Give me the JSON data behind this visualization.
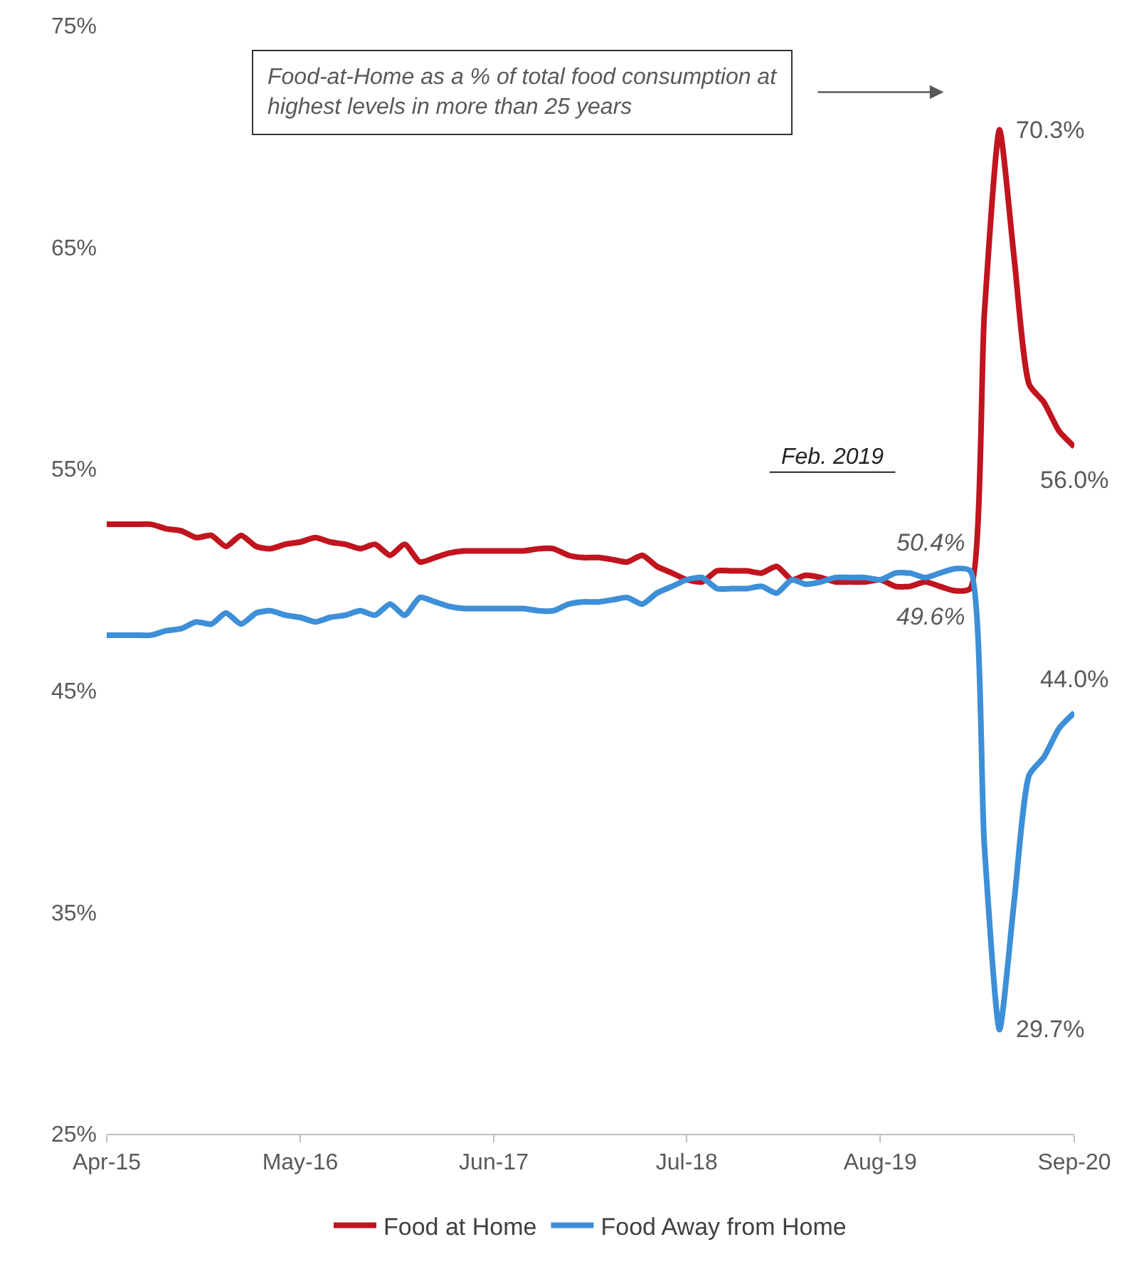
{
  "chart_data": {
    "type": "line",
    "x": [
      "2015-04",
      "2015-05",
      "2015-06",
      "2015-07",
      "2015-08",
      "2015-09",
      "2015-10",
      "2015-11",
      "2015-12",
      "2016-01",
      "2016-02",
      "2016-03",
      "2016-04",
      "2016-05",
      "2016-06",
      "2016-07",
      "2016-08",
      "2016-09",
      "2016-10",
      "2016-11",
      "2016-12",
      "2017-01",
      "2017-02",
      "2017-03",
      "2017-04",
      "2017-05",
      "2017-06",
      "2017-07",
      "2017-08",
      "2017-09",
      "2017-10",
      "2017-11",
      "2017-12",
      "2018-01",
      "2018-02",
      "2018-03",
      "2018-04",
      "2018-05",
      "2018-06",
      "2018-07",
      "2018-08",
      "2018-09",
      "2018-10",
      "2018-11",
      "2018-12",
      "2019-01",
      "2019-02",
      "2019-03",
      "2019-04",
      "2019-05",
      "2019-06",
      "2019-07",
      "2019-08",
      "2019-09",
      "2019-10",
      "2019-11",
      "2019-12",
      "2020-01",
      "2020-02",
      "2020-03",
      "2020-04",
      "2020-05",
      "2020-06",
      "2020-07",
      "2020-08",
      "2020-09"
    ],
    "series": [
      {
        "name": "Food at Home",
        "color": "#c0141e",
        "values": [
          52.5,
          52.5,
          52.5,
          52.5,
          52.3,
          52.2,
          51.9,
          52.0,
          51.5,
          52.0,
          51.5,
          51.4,
          51.6,
          51.7,
          51.9,
          51.7,
          51.6,
          51.4,
          51.6,
          51.1,
          51.6,
          50.8,
          51.0,
          51.2,
          51.3,
          51.3,
          51.3,
          51.3,
          51.3,
          51.4,
          51.4,
          51.1,
          51.0,
          51.0,
          50.9,
          50.8,
          51.1,
          50.6,
          50.3,
          50.0,
          49.9,
          50.4,
          50.4,
          50.4,
          50.3,
          50.6,
          50.0,
          50.2,
          50.1,
          49.9,
          49.9,
          49.9,
          50.0,
          49.7,
          49.7,
          49.9,
          49.7,
          49.5,
          49.6,
          62.0,
          70.3,
          64.5,
          58.8,
          58.0,
          56.7,
          56.0
        ],
        "value_labels": [
          null,
          null,
          null,
          null,
          null,
          null,
          null,
          null,
          null,
          null,
          null,
          null,
          null,
          null,
          null,
          null,
          null,
          null,
          null,
          null,
          null,
          null,
          null,
          null,
          null,
          null,
          null,
          null,
          null,
          null,
          null,
          null,
          null,
          null,
          null,
          null,
          null,
          null,
          null,
          null,
          null,
          null,
          null,
          null,
          null,
          null,
          null,
          null,
          null,
          null,
          null,
          null,
          null,
          null,
          null,
          null,
          null,
          null,
          "49.6%",
          null,
          "70.3%",
          null,
          null,
          null,
          null,
          "56.0%"
        ]
      },
      {
        "name": "Food Away from Home",
        "color": "#3d8fd8",
        "values": [
          47.5,
          47.5,
          47.5,
          47.5,
          47.7,
          47.8,
          48.1,
          48.0,
          48.5,
          48.0,
          48.5,
          48.6,
          48.4,
          48.3,
          48.1,
          48.3,
          48.4,
          48.6,
          48.4,
          48.9,
          48.4,
          49.2,
          49.0,
          48.8,
          48.7,
          48.7,
          48.7,
          48.7,
          48.7,
          48.6,
          48.6,
          48.9,
          49.0,
          49.0,
          49.1,
          49.2,
          48.9,
          49.4,
          49.7,
          50.0,
          50.1,
          49.6,
          49.6,
          49.6,
          49.7,
          49.4,
          50.0,
          49.8,
          49.9,
          50.1,
          50.1,
          50.1,
          50.0,
          50.3,
          50.3,
          50.1,
          50.3,
          50.5,
          50.4,
          38.0,
          29.7,
          35.5,
          41.2,
          42.0,
          43.3,
          44.0
        ],
        "value_labels": [
          null,
          null,
          null,
          null,
          null,
          null,
          null,
          null,
          null,
          null,
          null,
          null,
          null,
          null,
          null,
          null,
          null,
          null,
          null,
          null,
          null,
          null,
          null,
          null,
          null,
          null,
          null,
          null,
          null,
          null,
          null,
          null,
          null,
          null,
          null,
          null,
          null,
          null,
          null,
          null,
          null,
          null,
          null,
          null,
          null,
          null,
          null,
          null,
          null,
          null,
          null,
          null,
          null,
          null,
          null,
          null,
          null,
          null,
          "50.4%",
          null,
          "29.7%",
          null,
          null,
          null,
          null,
          "44.0%"
        ]
      }
    ],
    "xlim": [
      "2015-04",
      "2020-09"
    ],
    "xticks": [
      {
        "value": "2015-04",
        "label": "Apr-15"
      },
      {
        "value": "2016-05",
        "label": "May-16"
      },
      {
        "value": "2017-06",
        "label": "Jun-17"
      },
      {
        "value": "2018-07",
        "label": "Jul-18"
      },
      {
        "value": "2019-08",
        "label": "Aug-19"
      },
      {
        "value": "2020-09",
        "label": "Sep-20"
      }
    ],
    "ylim": [
      25,
      75
    ],
    "yticks": [
      {
        "value": 25,
        "label": "25%"
      },
      {
        "value": 35,
        "label": "35%"
      },
      {
        "value": 45,
        "label": "45%"
      },
      {
        "value": 55,
        "label": "55%"
      },
      {
        "value": 65,
        "label": "65%"
      },
      {
        "value": 75,
        "label": "75%"
      }
    ],
    "annotations": [
      "Food-at-Home as a % of total food consumption at highest levels in more than 25 years",
      "Feb. 2019"
    ],
    "legend": "bottom",
    "grid": false,
    "marker": "none",
    "line_style": "solid"
  }
}
